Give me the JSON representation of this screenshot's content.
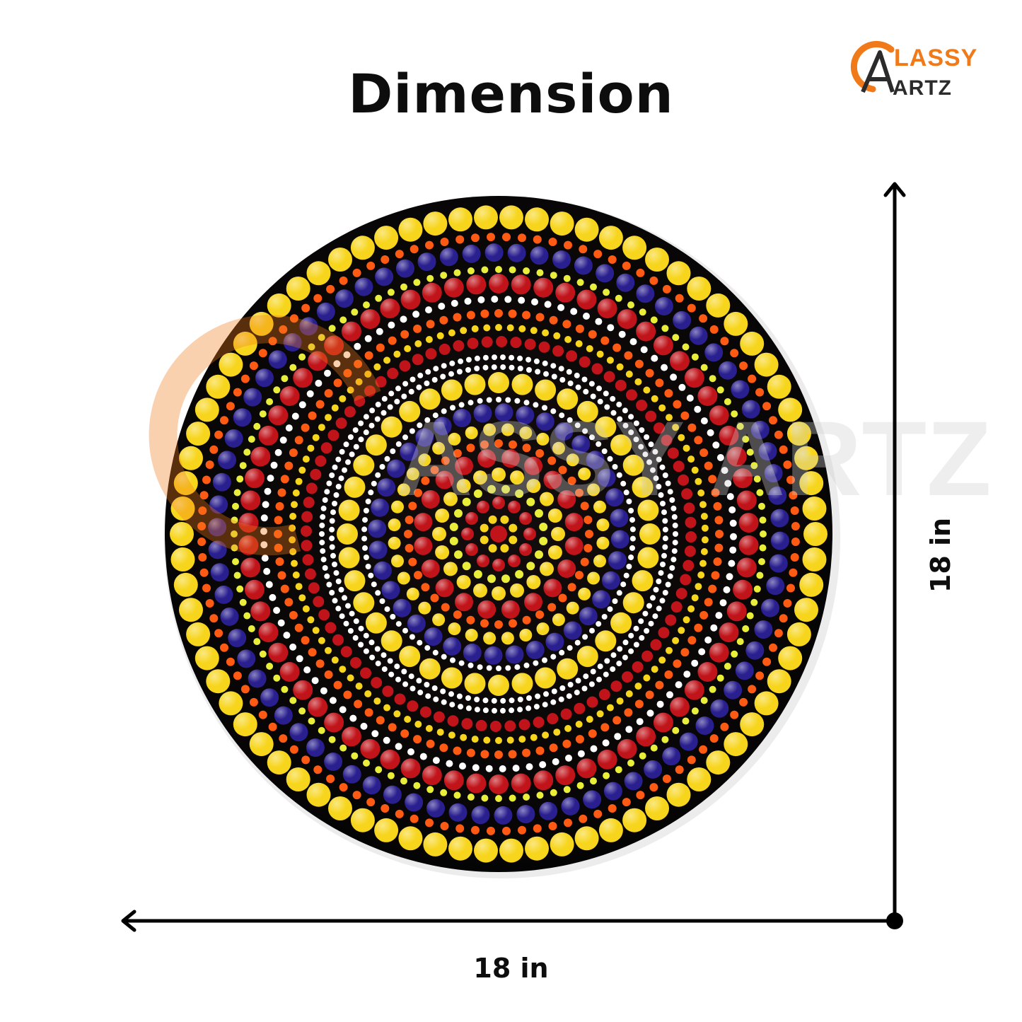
{
  "title": "Dimension",
  "logo": {
    "line1": "LASSY",
    "line2": "ARTZ",
    "accent_color": "#f07a1a",
    "dark_color": "#2b2b2b"
  },
  "plate": {
    "background_color": "#0b0909",
    "dot_colors": [
      "#f7d51c",
      "#f5a623",
      "#c0141a",
      "#2a1f8f",
      "#ffffff",
      "#ff5a14",
      "#e8ee3a"
    ],
    "watermark_text": "ASSY ARTZ"
  },
  "dimensions": {
    "width_label": "18 in",
    "height_label": "18 in"
  }
}
